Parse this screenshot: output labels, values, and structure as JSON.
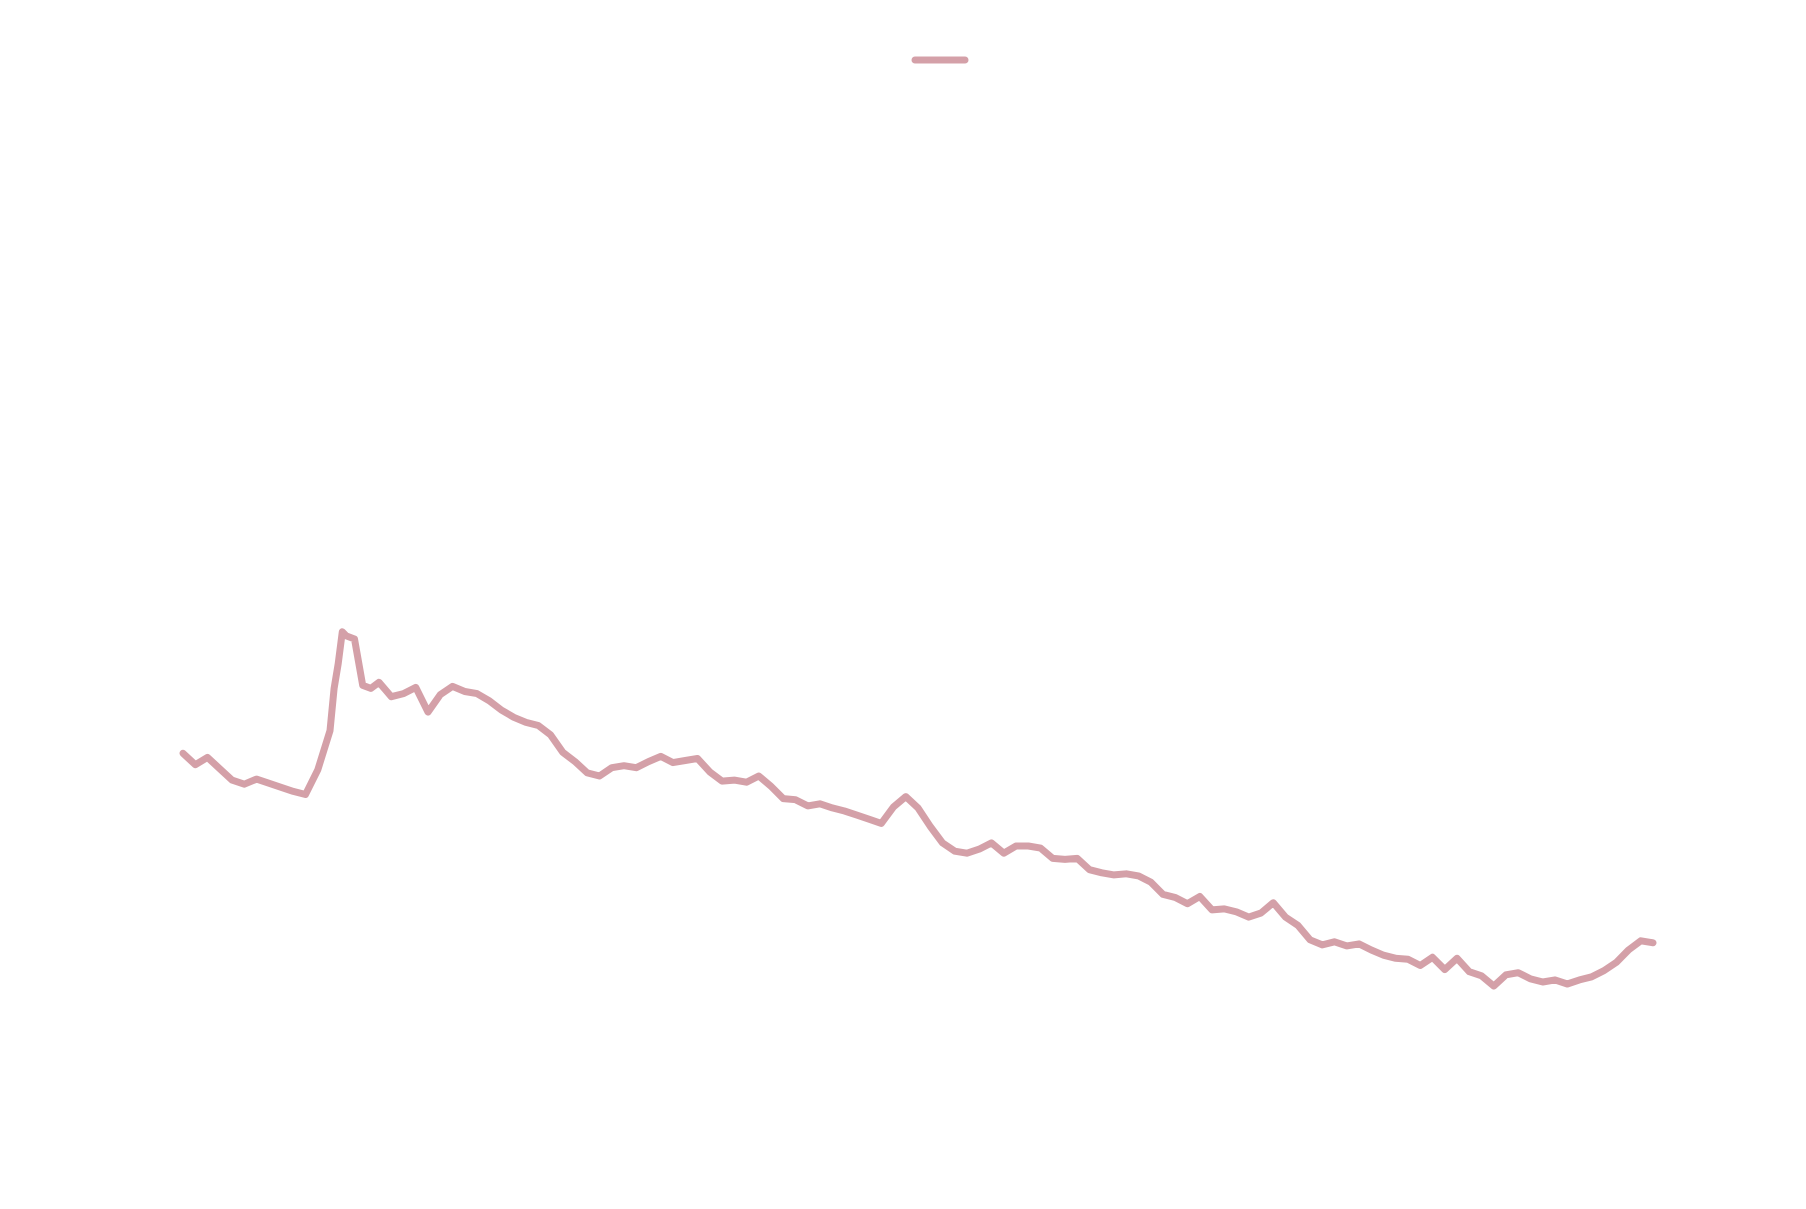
{
  "figure": {
    "background": "#ffffff"
  },
  "chart_data": {
    "type": "line",
    "title": "",
    "xlabel": "",
    "ylabel": "",
    "grid": false,
    "axes_visible": false,
    "legend": {
      "placement": "top-center",
      "entries": [
        {
          "label": "",
          "color": "#d4a0a8"
        }
      ]
    },
    "xlim": [
      0,
      360
    ],
    "ylim": [
      0,
      100
    ],
    "series": [
      {
        "color": "#d4a0a8",
        "x": [
          0,
          3,
          6,
          9,
          12,
          15,
          18,
          21,
          24,
          27,
          30,
          33,
          36,
          37,
          38,
          39,
          40,
          42,
          44,
          46,
          48,
          51,
          54,
          57,
          60,
          63,
          66,
          69,
          72,
          75,
          78,
          81,
          84,
          87,
          90,
          93,
          96,
          99,
          102,
          105,
          108,
          111,
          114,
          117,
          120,
          123,
          126,
          129,
          132,
          135,
          138,
          141,
          144,
          147,
          150,
          153,
          156,
          159,
          162,
          165,
          168,
          171,
          174,
          177,
          180,
          183,
          186,
          189,
          192,
          195,
          198,
          201,
          204,
          207,
          210,
          213,
          216,
          219,
          222,
          225,
          228,
          231,
          234,
          237,
          240,
          243,
          246,
          249,
          252,
          255,
          258,
          261,
          264,
          267,
          270,
          273,
          276,
          279,
          282,
          285,
          288,
          291,
          294,
          297,
          300,
          303,
          306,
          309,
          312,
          315,
          318,
          321,
          324,
          327,
          330,
          333,
          336,
          339,
          342,
          345,
          348,
          351,
          354,
          357,
          360
        ],
        "values": [
          35.6,
          34.5,
          35.2,
          34.1,
          33.0,
          32.6,
          33.1,
          32.7,
          32.3,
          31.9,
          31.6,
          34.0,
          37.8,
          41.9,
          44.3,
          47.4,
          47.0,
          46.7,
          42.2,
          41.9,
          42.5,
          41.1,
          41.4,
          42.0,
          39.6,
          41.3,
          42.1,
          41.6,
          41.4,
          40.7,
          39.8,
          39.1,
          38.6,
          38.3,
          37.4,
          35.7,
          34.8,
          33.7,
          33.4,
          34.2,
          34.4,
          34.2,
          34.8,
          35.3,
          34.7,
          34.9,
          35.1,
          33.8,
          32.9,
          33.0,
          32.8,
          33.4,
          32.4,
          31.2,
          31.1,
          30.5,
          30.7,
          30.3,
          30.0,
          29.6,
          29.2,
          28.8,
          30.4,
          31.4,
          30.3,
          28.5,
          26.9,
          26.1,
          25.9,
          26.3,
          26.9,
          25.9,
          26.6,
          26.6,
          26.4,
          25.4,
          25.3,
          25.4,
          24.3,
          24.0,
          23.8,
          23.9,
          23.7,
          23.1,
          21.9,
          21.6,
          21.0,
          21.7,
          20.4,
          20.5,
          20.2,
          19.7,
          20.1,
          21.1,
          19.7,
          18.9,
          17.5,
          17.0,
          17.3,
          16.9,
          17.1,
          16.5,
          16.0,
          15.7,
          15.6,
          15.0,
          15.8,
          14.6,
          15.7,
          14.4,
          14.0,
          13.0,
          14.1,
          14.3,
          13.7,
          13.4,
          13.6,
          13.2,
          13.6,
          13.9,
          14.5,
          15.3,
          16.5,
          17.4,
          17.2
        ]
      }
    ]
  }
}
